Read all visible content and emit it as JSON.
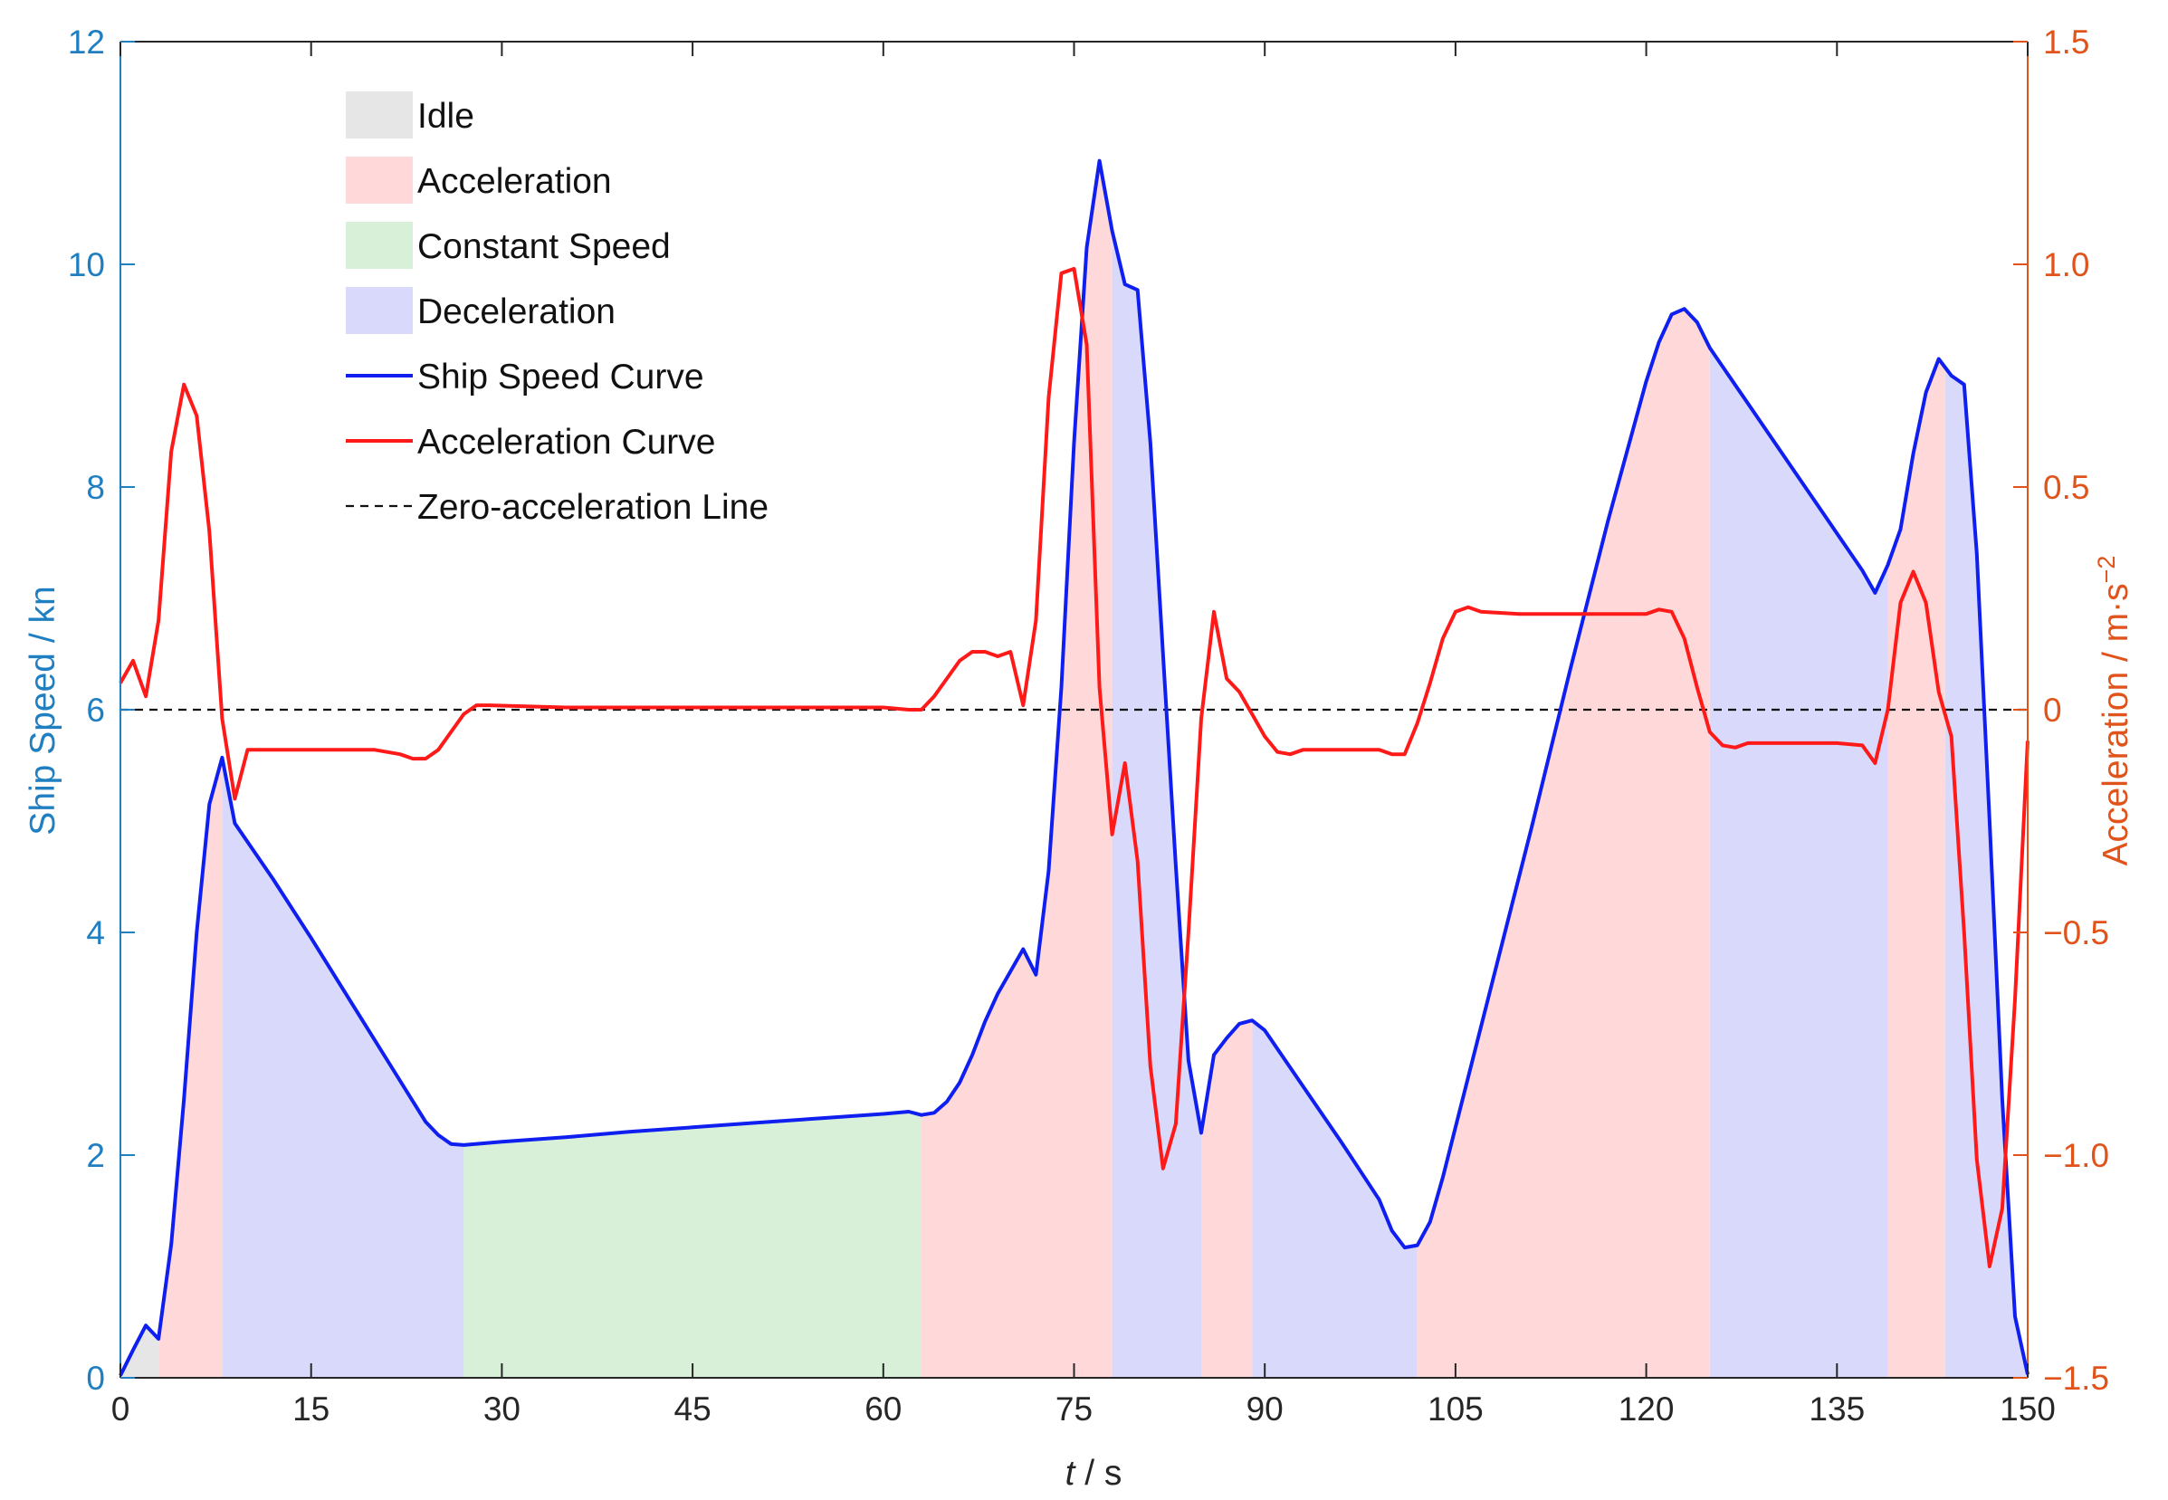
{
  "chart_data": {
    "type": "line",
    "xlabel": {
      "italic": "t",
      "rest": " / s"
    },
    "xlim": [
      0,
      150
    ],
    "x_ticks": [
      0,
      15,
      30,
      45,
      60,
      75,
      90,
      105,
      120,
      135,
      150
    ],
    "ylabel_left": "Ship Speed / kn",
    "ylim_left": [
      0,
      12
    ],
    "y_ticks_left": [
      0,
      2,
      4,
      6,
      8,
      10,
      12
    ],
    "ylabel_right": {
      "base": "Acceleration / m·s",
      "sup": "−2"
    },
    "ylim_right": [
      -1.5,
      1.5
    ],
    "y_ticks_right": [
      "−1.5",
      "−1.0",
      "−0.5",
      "0",
      "0.5",
      "1.0",
      "1.5"
    ],
    "y_ticks_right_values": [
      -1.5,
      -1.0,
      -0.5,
      0,
      0.5,
      1.0,
      1.5
    ],
    "colors": {
      "left_axis": "#1f7fc1",
      "right_axis": "#e0541b",
      "speed": "#0f1ff0",
      "accel": "#ff1a1a",
      "idle": "#e6e6e6",
      "acceleration": "#ffd9d9",
      "constant": "#d8f0d8",
      "deceleration": "#d9d9fc"
    },
    "legend": {
      "position": "top-left",
      "items": [
        {
          "key": "idle",
          "label": "Idle",
          "kind": "patch"
        },
        {
          "key": "acceleration",
          "label": "Acceleration",
          "kind": "patch"
        },
        {
          "key": "constant",
          "label": "Constant Speed",
          "kind": "patch"
        },
        {
          "key": "deceleration",
          "label": "Deceleration",
          "kind": "patch"
        },
        {
          "key": "speed",
          "label": "Ship Speed Curve",
          "kind": "line"
        },
        {
          "key": "accel",
          "label": "Acceleration Curve",
          "kind": "line"
        },
        {
          "key": "zero",
          "label": "Zero-acceleration Line",
          "kind": "dashed"
        }
      ]
    },
    "regions": [
      {
        "state": "idle",
        "start": 0,
        "end": 3
      },
      {
        "state": "acceleration",
        "start": 3,
        "end": 8
      },
      {
        "state": "deceleration",
        "start": 8,
        "end": 27
      },
      {
        "state": "constant",
        "start": 27,
        "end": 63
      },
      {
        "state": "acceleration",
        "start": 63,
        "end": 78
      },
      {
        "state": "deceleration",
        "start": 78,
        "end": 85
      },
      {
        "state": "acceleration",
        "start": 85,
        "end": 89
      },
      {
        "state": "deceleration",
        "start": 89,
        "end": 102
      },
      {
        "state": "acceleration",
        "start": 102,
        "end": 125
      },
      {
        "state": "deceleration",
        "start": 125,
        "end": 139
      },
      {
        "state": "acceleration",
        "start": 139,
        "end": 143.5
      },
      {
        "state": "deceleration",
        "start": 143.5,
        "end": 150
      }
    ],
    "series": [
      {
        "name": "Ship Speed Curve",
        "axis": "left",
        "points": [
          [
            0,
            0.02
          ],
          [
            1,
            0.25
          ],
          [
            2,
            0.47
          ],
          [
            3,
            0.35
          ],
          [
            4,
            1.2
          ],
          [
            5,
            2.5
          ],
          [
            6,
            4.0
          ],
          [
            7,
            5.15
          ],
          [
            8,
            5.57
          ],
          [
            9,
            4.98
          ],
          [
            12,
            4.48
          ],
          [
            15,
            3.95
          ],
          [
            18,
            3.4
          ],
          [
            21,
            2.85
          ],
          [
            24,
            2.3
          ],
          [
            25,
            2.18
          ],
          [
            26,
            2.1
          ],
          [
            27,
            2.09
          ],
          [
            30,
            2.12
          ],
          [
            35,
            2.16
          ],
          [
            40,
            2.21
          ],
          [
            45,
            2.25
          ],
          [
            50,
            2.29
          ],
          [
            55,
            2.33
          ],
          [
            60,
            2.37
          ],
          [
            62,
            2.39
          ],
          [
            63,
            2.36
          ],
          [
            64,
            2.38
          ],
          [
            65,
            2.48
          ],
          [
            66,
            2.65
          ],
          [
            67,
            2.9
          ],
          [
            68,
            3.2
          ],
          [
            69,
            3.45
          ],
          [
            70,
            3.65
          ],
          [
            71,
            3.85
          ],
          [
            72,
            3.62
          ],
          [
            73,
            4.55
          ],
          [
            74,
            6.2
          ],
          [
            75,
            8.4
          ],
          [
            76,
            10.15
          ],
          [
            77,
            10.93
          ],
          [
            78,
            10.3
          ],
          [
            79,
            9.82
          ],
          [
            80,
            9.77
          ],
          [
            81,
            8.4
          ],
          [
            82,
            6.5
          ],
          [
            83,
            4.6
          ],
          [
            84,
            2.85
          ],
          [
            85,
            2.2
          ],
          [
            86,
            2.9
          ],
          [
            87,
            3.05
          ],
          [
            88,
            3.18
          ],
          [
            89,
            3.21
          ],
          [
            90,
            3.12
          ],
          [
            93,
            2.62
          ],
          [
            96,
            2.12
          ],
          [
            99,
            1.6
          ],
          [
            100,
            1.32
          ],
          [
            101,
            1.17
          ],
          [
            102,
            1.19
          ],
          [
            103,
            1.4
          ],
          [
            104,
            1.8
          ],
          [
            105,
            2.25
          ],
          [
            108,
            3.6
          ],
          [
            111,
            4.95
          ],
          [
            114,
            6.35
          ],
          [
            117,
            7.7
          ],
          [
            120,
            8.95
          ],
          [
            121,
            9.3
          ],
          [
            122,
            9.55
          ],
          [
            123,
            9.6
          ],
          [
            124,
            9.48
          ],
          [
            125,
            9.25
          ],
          [
            128,
            8.75
          ],
          [
            131,
            8.25
          ],
          [
            134,
            7.75
          ],
          [
            137,
            7.25
          ],
          [
            138,
            7.05
          ],
          [
            139,
            7.3
          ],
          [
            140,
            7.62
          ],
          [
            141,
            8.3
          ],
          [
            142,
            8.85
          ],
          [
            143,
            9.15
          ],
          [
            144,
            9.0
          ],
          [
            145,
            8.92
          ],
          [
            146,
            7.4
          ],
          [
            147,
            5.0
          ],
          [
            148,
            2.5
          ],
          [
            149,
            0.55
          ],
          [
            150,
            0.03
          ]
        ]
      },
      {
        "name": "Acceleration Curve",
        "axis": "right",
        "points": [
          [
            0,
            0.06
          ],
          [
            1,
            0.11
          ],
          [
            2,
            0.03
          ],
          [
            3,
            0.2
          ],
          [
            4,
            0.58
          ],
          [
            5,
            0.73
          ],
          [
            6,
            0.66
          ],
          [
            7,
            0.4
          ],
          [
            8,
            -0.02
          ],
          [
            9,
            -0.2
          ],
          [
            10,
            -0.09
          ],
          [
            15,
            -0.09
          ],
          [
            20,
            -0.09
          ],
          [
            22,
            -0.1
          ],
          [
            23,
            -0.11
          ],
          [
            24,
            -0.11
          ],
          [
            25,
            -0.09
          ],
          [
            26,
            -0.05
          ],
          [
            27,
            -0.01
          ],
          [
            28,
            0.01
          ],
          [
            29,
            0.01
          ],
          [
            35,
            0.005
          ],
          [
            40,
            0.005
          ],
          [
            45,
            0.005
          ],
          [
            50,
            0.005
          ],
          [
            55,
            0.005
          ],
          [
            60,
            0.005
          ],
          [
            62,
            0.0
          ],
          [
            63,
            0.0
          ],
          [
            64,
            0.03
          ],
          [
            65,
            0.07
          ],
          [
            66,
            0.11
          ],
          [
            67,
            0.13
          ],
          [
            68,
            0.13
          ],
          [
            69,
            0.12
          ],
          [
            70,
            0.13
          ],
          [
            71,
            0.01
          ],
          [
            72,
            0.2
          ],
          [
            73,
            0.7
          ],
          [
            74,
            0.98
          ],
          [
            75,
            0.99
          ],
          [
            76,
            0.82
          ],
          [
            77,
            0.05
          ],
          [
            78,
            -0.28
          ],
          [
            79,
            -0.12
          ],
          [
            80,
            -0.34
          ],
          [
            81,
            -0.8
          ],
          [
            82,
            -1.03
          ],
          [
            83,
            -0.93
          ],
          [
            84,
            -0.5
          ],
          [
            85,
            -0.02
          ],
          [
            86,
            0.22
          ],
          [
            87,
            0.07
          ],
          [
            88,
            0.04
          ],
          [
            89,
            -0.01
          ],
          [
            90,
            -0.06
          ],
          [
            91,
            -0.095
          ],
          [
            92,
            -0.1
          ],
          [
            93,
            -0.09
          ],
          [
            95,
            -0.09
          ],
          [
            97,
            -0.09
          ],
          [
            99,
            -0.09
          ],
          [
            100,
            -0.1
          ],
          [
            101,
            -0.1
          ],
          [
            102,
            -0.03
          ],
          [
            103,
            0.06
          ],
          [
            104,
            0.16
          ],
          [
            105,
            0.22
          ],
          [
            106,
            0.23
          ],
          [
            107,
            0.22
          ],
          [
            110,
            0.215
          ],
          [
            115,
            0.215
          ],
          [
            120,
            0.215
          ],
          [
            121,
            0.225
          ],
          [
            122,
            0.22
          ],
          [
            123,
            0.16
          ],
          [
            124,
            0.05
          ],
          [
            125,
            -0.05
          ],
          [
            126,
            -0.08
          ],
          [
            127,
            -0.085
          ],
          [
            128,
            -0.075
          ],
          [
            130,
            -0.075
          ],
          [
            132,
            -0.075
          ],
          [
            135,
            -0.075
          ],
          [
            137,
            -0.08
          ],
          [
            138,
            -0.12
          ],
          [
            139,
            0.0
          ],
          [
            140,
            0.24
          ],
          [
            141,
            0.31
          ],
          [
            142,
            0.24
          ],
          [
            143,
            0.04
          ],
          [
            144,
            -0.06
          ],
          [
            145,
            -0.5
          ],
          [
            146,
            -1.01
          ],
          [
            147,
            -1.25
          ],
          [
            148,
            -1.12
          ],
          [
            149,
            -0.65
          ],
          [
            150,
            -0.07
          ]
        ]
      }
    ],
    "zero_line": {
      "axis": "right",
      "value": 0
    }
  }
}
